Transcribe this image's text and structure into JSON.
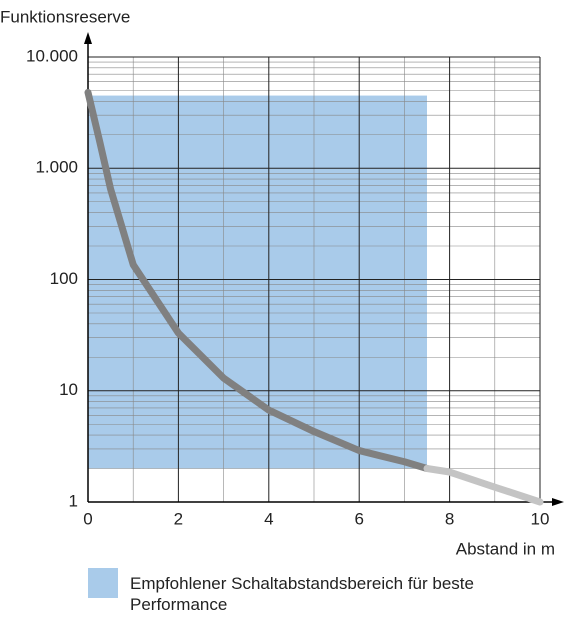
{
  "chart_data": {
    "type": "line",
    "y_label": "Funktionsreserve",
    "x_label": "Abstand in m",
    "xlim": [
      0,
      10
    ],
    "xticks": [
      0,
      2,
      4,
      6,
      8,
      10
    ],
    "ylim": [
      1,
      10000
    ],
    "y_log": true,
    "yticks": [
      1,
      10,
      100,
      {
        "value": 1000,
        "label": "1.000"
      },
      {
        "value": 10000,
        "label": "10.000"
      }
    ],
    "grid": true,
    "series": [
      {
        "color": "#808080",
        "x": [
          0,
          0.25,
          0.5,
          1,
          2,
          3,
          4,
          5,
          6,
          7,
          7.5
        ],
        "values": [
          4800,
          1800,
          650,
          136,
          33,
          13,
          6.7,
          4.3,
          2.9,
          2.3,
          2
        ]
      },
      {
        "color": "#c4c4c4",
        "x": [
          7.5,
          8,
          9,
          10
        ],
        "values": [
          2,
          1.86,
          1.36,
          1
        ]
      }
    ],
    "region": {
      "x": [
        0,
        7.5
      ],
      "y": [
        2,
        4500
      ],
      "color": "#a9cbea",
      "label": "Empfohlener Schaltabstandsbereich für beste Performance"
    }
  }
}
